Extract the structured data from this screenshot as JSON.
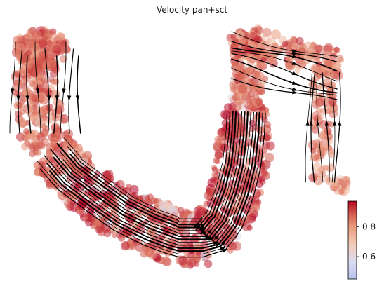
{
  "chart_data": {
    "type": "scatter",
    "title": "Velocity pan+sct",
    "xlabel": "",
    "ylabel": "",
    "axes_visible": false,
    "overlay": "velocity streamlines with arrowheads",
    "colormap": {
      "name": "coolwarm",
      "stops": [
        "#b7c4ef",
        "#dcdcee",
        "#f2cbb7",
        "#e9997d",
        "#cf5046",
        "#b40426"
      ],
      "range": [
        0.45,
        0.97
      ]
    },
    "colorbar": {
      "position": "bottom-right",
      "ticks": [
        0.6,
        0.8
      ],
      "tick_labels": [
        "0.6",
        "0.8"
      ]
    },
    "colors": {
      "streamline": "#000000",
      "background": "#ffffff"
    }
  }
}
